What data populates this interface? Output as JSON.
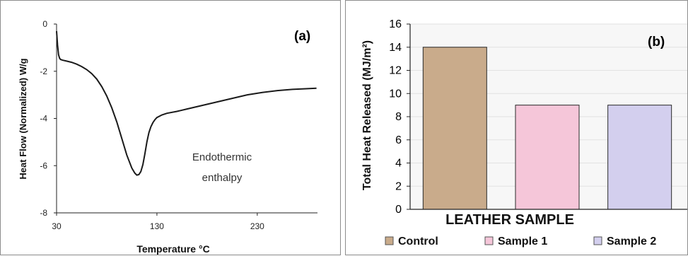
{
  "chart_data": [
    {
      "type": "line",
      "panel_label": "(a)",
      "title": "",
      "xlabel": "Temperature °C",
      "ylabel": "Heat Flow (Normalized) W/g",
      "xlim": [
        30,
        290
      ],
      "ylim": [
        -8,
        0
      ],
      "xticks": [
        30,
        130,
        230
      ],
      "yticks": [
        0,
        -2,
        -4,
        -6,
        -8
      ],
      "annotation": [
        "Endothermic",
        "enthalpy"
      ],
      "grid": false,
      "series": [
        {
          "x": [
            30,
            31,
            32,
            33,
            34,
            36,
            40,
            45,
            50,
            55,
            60,
            65,
            70,
            75,
            80,
            85,
            90,
            95,
            100,
            105,
            108,
            110,
            112,
            114,
            116,
            118,
            120,
            122,
            124,
            126,
            128,
            130,
            135,
            140,
            150,
            160,
            175,
            190,
            205,
            220,
            235,
            250,
            265,
            280,
            289
          ],
          "y": [
            -0.3,
            -0.9,
            -1.3,
            -1.45,
            -1.5,
            -1.53,
            -1.57,
            -1.62,
            -1.7,
            -1.8,
            -1.93,
            -2.1,
            -2.33,
            -2.65,
            -3.05,
            -3.55,
            -4.15,
            -4.85,
            -5.55,
            -6.1,
            -6.32,
            -6.4,
            -6.38,
            -6.25,
            -5.95,
            -5.5,
            -5.0,
            -4.6,
            -4.35,
            -4.18,
            -4.05,
            -3.96,
            -3.85,
            -3.78,
            -3.7,
            -3.6,
            -3.45,
            -3.3,
            -3.15,
            -3.0,
            -2.9,
            -2.82,
            -2.77,
            -2.74,
            -2.72
          ]
        }
      ]
    },
    {
      "type": "bar",
      "panel_label": "(b)",
      "title": "",
      "xlabel": "LEATHER SAMPLE",
      "ylabel": "Total Heat Released (MJ/m²)",
      "ylim": [
        0,
        16
      ],
      "yticks": [
        0,
        2,
        4,
        6,
        8,
        10,
        12,
        14,
        16
      ],
      "grid": true,
      "legend_position": "bottom",
      "series": [
        {
          "name": "Control",
          "values": [
            14
          ],
          "color": "#c9ab8b"
        },
        {
          "name": "Sample 1",
          "values": [
            9
          ],
          "color": "#f5c6d9"
        },
        {
          "name": "Sample 2",
          "values": [
            9
          ],
          "color": "#d3cfee"
        }
      ]
    }
  ]
}
